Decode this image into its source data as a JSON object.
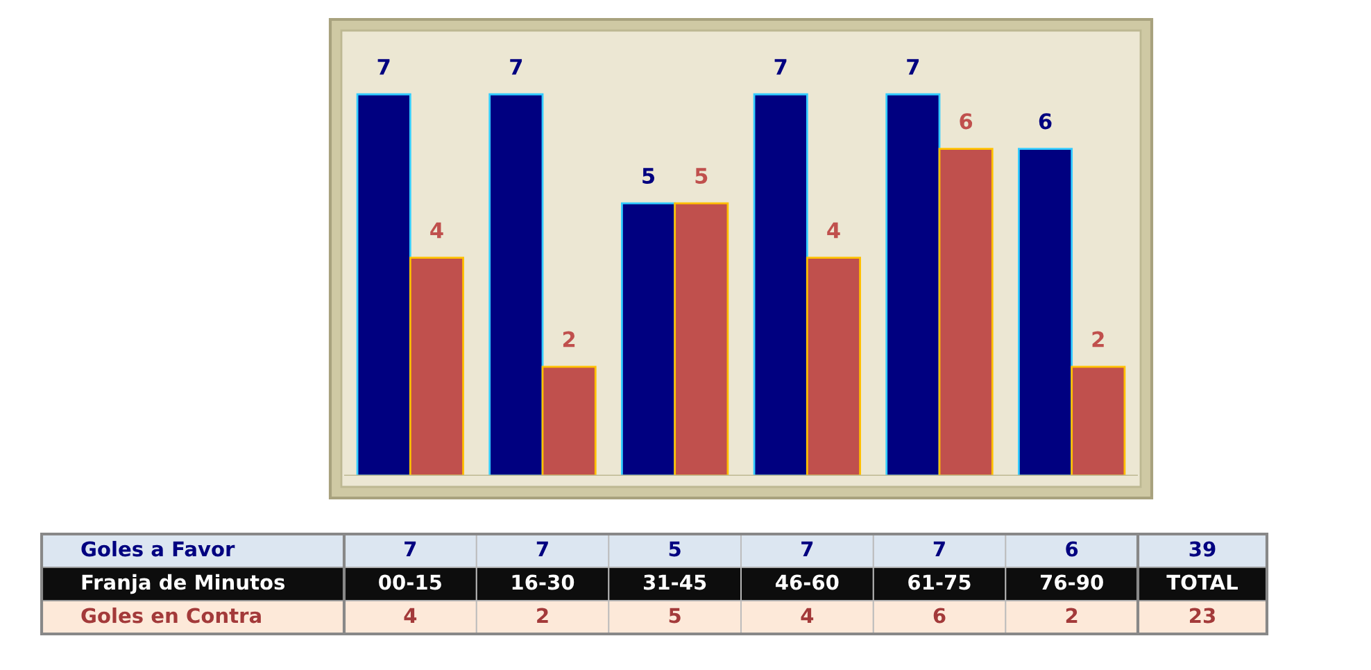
{
  "chart_data": {
    "type": "bar",
    "categories": [
      "00-15",
      "16-30",
      "31-45",
      "46-60",
      "61-75",
      "76-90"
    ],
    "series": [
      {
        "name": "Goles a Favor",
        "color": "#000080",
        "values": [
          7,
          7,
          5,
          7,
          7,
          6
        ],
        "value_labels": [
          "7",
          "7",
          "5",
          "7",
          "7",
          "6"
        ]
      },
      {
        "name": "Goles en Contra",
        "color": "#c0504d",
        "values": [
          4,
          2,
          5,
          4,
          6,
          2
        ],
        "value_labels": [
          "4",
          "2",
          "5",
          "4",
          "6",
          "2"
        ]
      }
    ],
    "annotations": [
      "Franja de Minutos",
      "TOTAL",
      "39",
      "23",
      "7",
      "7",
      "5",
      "7",
      "7",
      "6",
      "4",
      "2",
      "5",
      "4",
      "6",
      "2"
    ]
  }
}
